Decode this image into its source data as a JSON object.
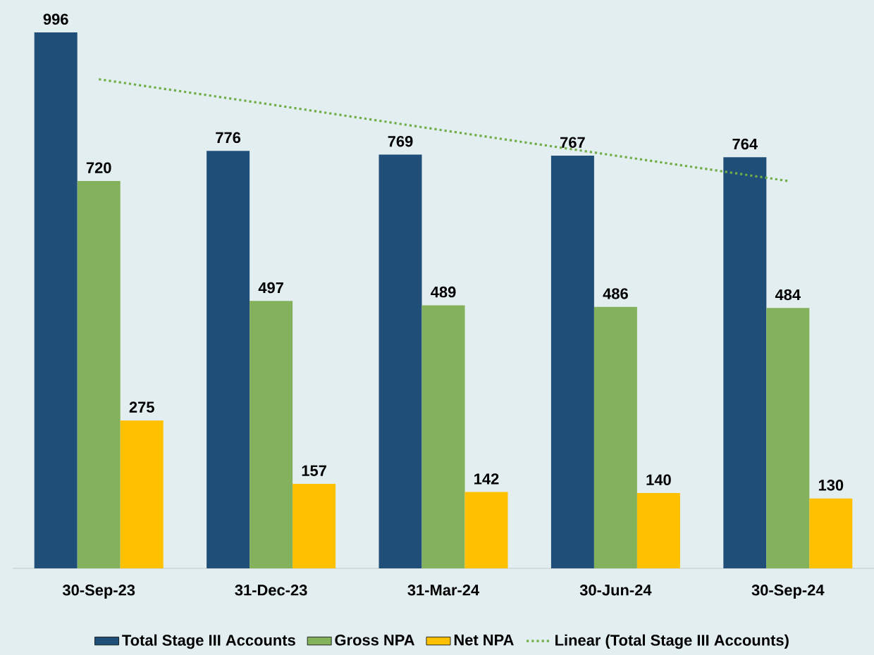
{
  "chart_data": {
    "type": "bar",
    "categories": [
      "30-Sep-23",
      "31-Dec-23",
      "31-Mar-24",
      "30-Jun-24",
      "30-Sep-24"
    ],
    "series": [
      {
        "name": "Total Stage III Accounts",
        "color": "#1f4e79",
        "values": [
          996,
          776,
          769,
          767,
          764
        ],
        "value_labels": [
          "996",
          "776",
          "769",
          "767",
          "764"
        ]
      },
      {
        "name": "Gross NPA",
        "color": "#84b25c",
        "values": [
          720,
          497,
          489,
          486,
          484
        ],
        "value_labels": [
          "720",
          "497",
          "489",
          "486",
          "484"
        ]
      },
      {
        "name": "Net NPA",
        "color": "#ffc000",
        "values": [
          275,
          157,
          142,
          140,
          130
        ],
        "value_labels": [
          "275",
          "157",
          "142",
          "140",
          "130"
        ]
      },
      {
        "name": "Linear (Total Stage III Accounts)",
        "type": "line",
        "line_style": "dotted",
        "color": "#70ad47",
        "values": [
          909,
          862,
          814,
          767,
          720
        ]
      }
    ],
    "legend": "bottom",
    "ylim": [
      0,
      1000
    ]
  }
}
